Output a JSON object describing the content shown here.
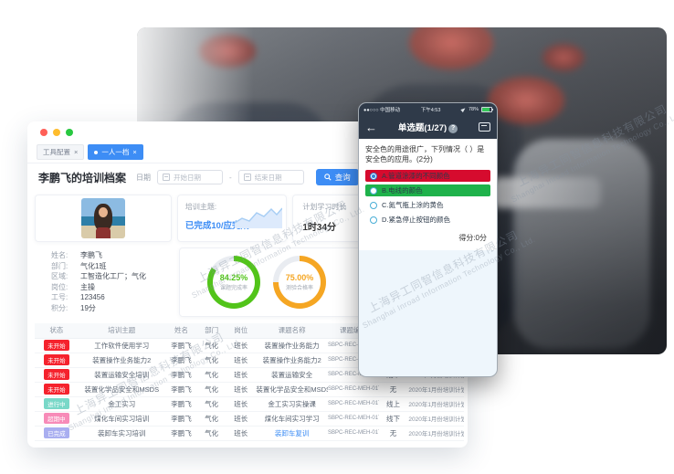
{
  "watermark": {
    "cn": "上海异工同智信息科技有限公司",
    "en": "Shanghai Inroad Information Technology Co., Ltd."
  },
  "desktop": {
    "tabs": [
      {
        "label": "工具配置",
        "close": "×",
        "active": false
      },
      {
        "label": "一人一档",
        "close": "×",
        "active": true
      }
    ],
    "toolbar": {
      "title": "李鹏飞的培训档案",
      "date_label": "日期",
      "start_placeholder": "开始日期",
      "range_separator": "-",
      "end_placeholder": "结束日期",
      "search_label": "查询"
    },
    "cards": {
      "topic_label": "培训主题:",
      "topic_value": "已完成10/应完成12",
      "duration_label": "计划学习时长",
      "duration_value": "1时34分"
    },
    "profile": [
      {
        "label": "姓名:",
        "value": "李鹏飞"
      },
      {
        "label": "部门:",
        "value": "气化1班"
      },
      {
        "label": "区域:",
        "value": "工智造化工厂；气化"
      },
      {
        "label": "岗位:",
        "value": "主操"
      },
      {
        "label": "工号:",
        "value": "123456"
      },
      {
        "label": "积分:",
        "value": "19分"
      }
    ],
    "gauges": [
      {
        "value": "84.25%",
        "label": "课题完成率",
        "percent": 84.25,
        "color": "#52c41a"
      },
      {
        "value": "75.00%",
        "label": "测验合格率",
        "percent": 75.0,
        "color": "#f5a623"
      }
    ],
    "status_colors": {
      "red": "#f5222d",
      "teal": "#79d8c8",
      "pink": "#f78bb8",
      "purple": "#a9aef0"
    },
    "table": {
      "headers": [
        "状态",
        "培训主题",
        "姓名",
        "部门",
        "岗位",
        "课题名称",
        "课题编号",
        "培训方式",
        "计划名称",
        "操作"
      ],
      "rows": [
        {
          "status": "未开始",
          "status_type": "red",
          "topic": "工作软件使用学习",
          "name": "李鹏飞",
          "dept": "气化",
          "post": "班长",
          "course": "装置操作业务能力",
          "code": "SBPC-REC-MEH-017",
          "mode": "无",
          "plan": "2020年1月份培训计划",
          "action": "查看",
          "course_link": false
        },
        {
          "status": "未开始",
          "status_type": "red",
          "topic": "装置操作业务能力2",
          "name": "李鹏飞",
          "dept": "气化",
          "post": "班长",
          "course": "装置操作业务能力2",
          "code": "SBPC-REC-MEH-017",
          "mode": "线上",
          "plan": "2020年1月份培训计划",
          "action": "查看",
          "course_link": false
        },
        {
          "status": "未开始",
          "status_type": "red",
          "topic": "装置运输安全培训",
          "name": "李鹏飞",
          "dept": "气化",
          "post": "班长",
          "course": "装置运输安全",
          "code": "SBPC-REC-MEH-017",
          "mode": "线下",
          "plan": "2020年1月份培训计划",
          "action": "查看",
          "course_link": false
        },
        {
          "status": "未开始",
          "status_type": "red",
          "topic": "装置化学品安全和MSDS",
          "name": "李鹏飞",
          "dept": "气化",
          "post": "班长",
          "course": "装置化学品安全和MSDS",
          "code": "SBPC-REC-MEH-017",
          "mode": "无",
          "plan": "2020年1月份培训计划",
          "action": "查看",
          "course_link": false
        },
        {
          "status": "进行中",
          "status_type": "teal",
          "topic": "金工实习",
          "name": "李鹏飞",
          "dept": "气化",
          "post": "班长",
          "course": "金工实习实操课",
          "code": "SBPC-REC-MEH-017",
          "mode": "线上",
          "plan": "2020年1月份培训计划",
          "action": "查看",
          "course_link": false
        },
        {
          "status": "超期中",
          "status_type": "pink",
          "topic": "煤化车间实习培训",
          "name": "李鹏飞",
          "dept": "气化",
          "post": "班长",
          "course": "煤化车间实习学习",
          "code": "SBPC-REC-MEH-017",
          "mode": "线下",
          "plan": "2020年1月份培训计划",
          "action": "查看",
          "course_link": false
        },
        {
          "status": "已完成",
          "status_type": "purple",
          "topic": "装卸车实习培训",
          "name": "李鹏飞",
          "dept": "气化",
          "post": "班长",
          "course": "装卸车复训",
          "code": "SBPC-REC-MEH-017",
          "mode": "无",
          "plan": "2020年1月份培训计划",
          "action": "查看",
          "course_link": true
        }
      ]
    }
  },
  "phone": {
    "status_bar": {
      "carrier": "●●○○○ 中国移动",
      "time": "下午4:53",
      "battery": "78%"
    },
    "nav": {
      "back": "←",
      "title": "单选题(1/27)",
      "help": "?"
    },
    "question": "安全色的用途很广，下列情况（ ）是安全色的应用。(2分)",
    "options": [
      {
        "text": "A.管道涂漆的不同颜色",
        "bg": "red",
        "selected": true
      },
      {
        "text": "B.电线的颜色",
        "bg": "green",
        "selected": false
      },
      {
        "text": "C.氮气瓶上涂的黄色",
        "bg": "none",
        "selected": false
      },
      {
        "text": "D.紧急停止按钮的颜色",
        "bg": "none",
        "selected": false
      }
    ],
    "score": "得分:0分",
    "colors": {
      "wrong": "#d60b2e",
      "correct": "#1fb24b",
      "bar": "#2f3a49"
    }
  }
}
